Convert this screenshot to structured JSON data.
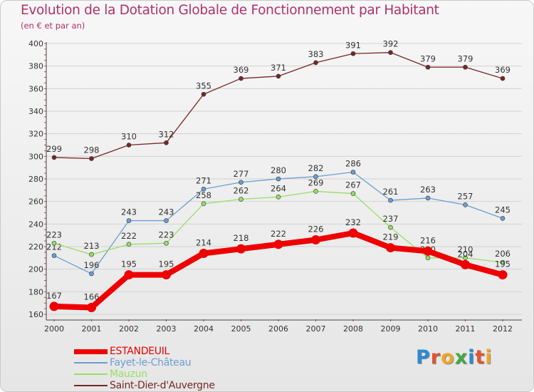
{
  "title": "Evolution de la Dotation Globale de Fonctionnement par Habitant",
  "subtitle": "(en € et par an)",
  "logo": {
    "text": "Proxiti",
    "colors": [
      "#2d8ad0",
      "#e4552f",
      "#f0a62a",
      "#44a844",
      "#2d8ad0",
      "#e4552f",
      "#f0a62a"
    ]
  },
  "chart_data": {
    "type": "line",
    "title": "Evolution de la Dotation Globale de Fonctionnement par Habitant",
    "subtitle": "(en € et par an)",
    "xlabel": "",
    "ylabel": "",
    "ylim": [
      160,
      400
    ],
    "yticks": [
      "160",
      "180",
      "200",
      "220",
      "240",
      "260",
      "280",
      "300",
      "320",
      "340",
      "360",
      "380",
      "400"
    ],
    "categories": [
      "2000",
      "2001",
      "2002",
      "2003",
      "2004",
      "2005",
      "2006",
      "2007",
      "2008",
      "2009",
      "2010",
      "2011",
      "2012"
    ],
    "grid": true,
    "legend_position": "bottom-left",
    "series": [
      {
        "name": "Saint-Dier-d'Auvergne",
        "color": "#772727",
        "values": [
          299,
          298,
          310,
          312,
          355,
          369,
          371,
          383,
          391,
          392,
          379,
          379,
          369
        ],
        "labels": [
          "299",
          "298",
          "310",
          "312",
          "355",
          "369",
          "371",
          "383",
          "391",
          "392",
          "379",
          "379",
          "369"
        ]
      },
      {
        "name": "Fayet-le-Château",
        "color": "#6c9ed1",
        "values": [
          212,
          196,
          243,
          243,
          271,
          277,
          280,
          282,
          286,
          261,
          263,
          257,
          245
        ],
        "labels": [
          "212",
          "196",
          "243",
          "243",
          "271",
          "277",
          "280",
          "282",
          "286",
          "261",
          "263",
          "257",
          "245"
        ]
      },
      {
        "name": "Mauzun",
        "color": "#99dd66",
        "values": [
          223,
          213,
          222,
          223,
          258,
          262,
          264,
          269,
          267,
          237,
          210,
          210,
          206
        ],
        "labels": [
          "223",
          "213",
          "222",
          "223",
          "258",
          "262",
          "264",
          "269",
          "267",
          "237",
          "210",
          "210",
          "206"
        ]
      },
      {
        "name": "ESTANDEUIL",
        "color": "#ee0000",
        "values": [
          167,
          166,
          195,
          195,
          214,
          218,
          222,
          226,
          232,
          219,
          216,
          204,
          195
        ],
        "labels": [
          "167",
          "166",
          "195",
          "195",
          "214",
          "218",
          "222",
          "226",
          "232",
          "219",
          "216",
          "204",
          "195"
        ]
      }
    ],
    "legend": [
      {
        "name": "ESTANDEUIL",
        "color": "#ee0000",
        "thickness": "thick"
      },
      {
        "name": "Fayet-le-Château",
        "color": "#6c9ed1",
        "thickness": "thin"
      },
      {
        "name": "Mauzun",
        "color": "#99dd66",
        "thickness": "thin"
      },
      {
        "name": "Saint-Dier-d'Auvergne",
        "color": "#772727",
        "thickness": "thin"
      }
    ]
  }
}
